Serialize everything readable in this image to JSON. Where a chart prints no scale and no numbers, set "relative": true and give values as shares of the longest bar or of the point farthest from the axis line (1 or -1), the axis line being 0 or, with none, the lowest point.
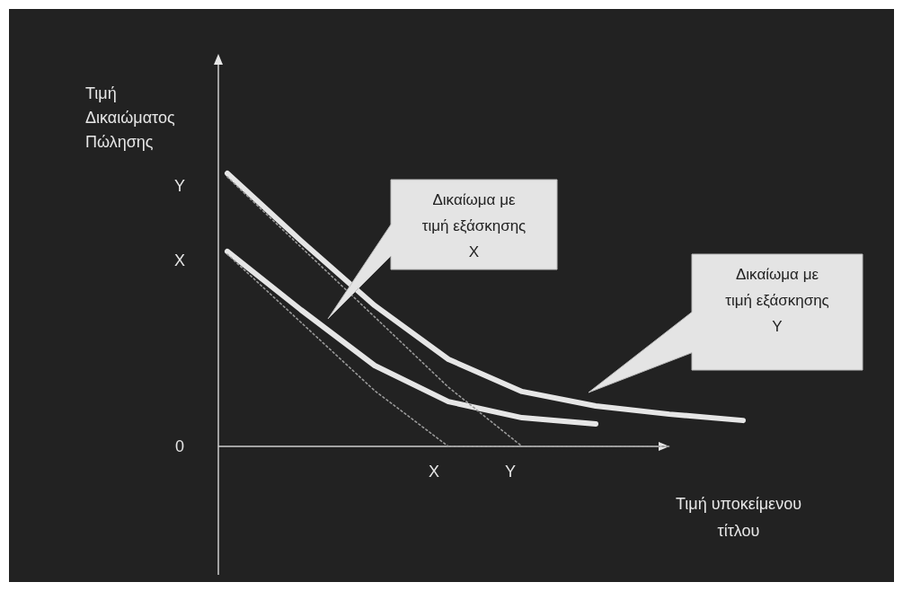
{
  "chart_data": {
    "type": "line",
    "xlabel": "Τιμή υποκείμενου τίτλου",
    "ylabel": "Τιμή Δικαιώματος Πώλησης",
    "relative": true,
    "categories": [
      null,
      null,
      null,
      null,
      null,
      null,
      null,
      null
    ],
    "series": [
      {
        "color": "#e6e6e6",
        "values": [
          1,
          0.753,
          0.516,
          0.319,
          0.201,
          0.148,
          0.118,
          0.095
        ]
      },
      {
        "color": "#e6e6e6",
        "values": [
          0.714,
          0.5,
          0.296,
          0.164,
          0.105,
          0.082,
          null,
          null
        ]
      },
      {
        "color": "#9a9a9a",
        "line_style": "dotted",
        "values": [
          0.987,
          0.73,
          0.474,
          0.217,
          0,
          0,
          0,
          null
        ]
      },
      {
        "color": "#9a9a9a",
        "line_style": "dotted",
        "values": [
          0.704,
          0.454,
          0.204,
          0,
          0,
          0,
          0,
          null
        ]
      }
    ],
    "annotations": [
      "Δικαίωμα με τιμή εξάσκησης X",
      "Δικαίωμα με τιμή εξάσκησης Y",
      "Y",
      "X",
      "0",
      "X",
      "Y"
    ]
  }
}
